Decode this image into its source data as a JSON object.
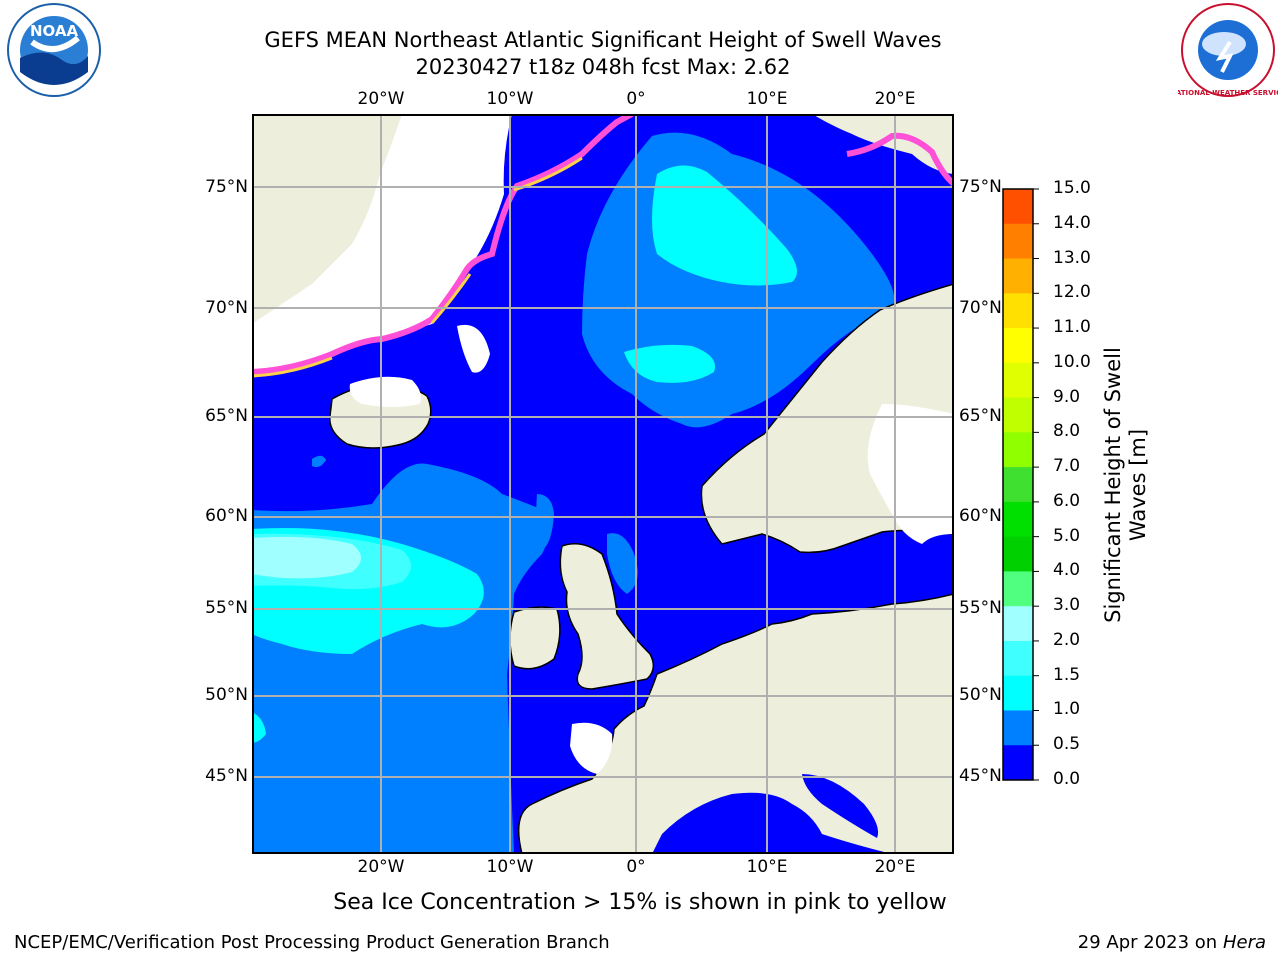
{
  "title": {
    "line1": "GEFS MEAN Northeast Atlantic Significant Height of Swell Waves",
    "line2": "20230427 t18z 048h fcst   Max: 2.62"
  },
  "logos": {
    "left": {
      "icon": "noaa-logo",
      "text": "NOAA"
    },
    "right": {
      "icon": "nws-logo",
      "text": "NATIONAL WEATHER SERVICE"
    }
  },
  "map": {
    "lon_labels_top": [
      "20°W",
      "10°W",
      "0°",
      "10°E",
      "20°E"
    ],
    "lon_labels_bottom": [
      "20°W",
      "10°W",
      "0°",
      "10°E",
      "20°E"
    ],
    "lat_labels_left": [
      "75°N",
      "70°N",
      "65°N",
      "60°N",
      "55°N",
      "50°N",
      "45°N"
    ],
    "lat_labels_right": [
      "75°N",
      "70°N",
      "65°N",
      "60°N",
      "55°N",
      "50°N",
      "45°N"
    ],
    "colors": {
      "land": "#eeeedd",
      "ocean_0_05": "#0000ff",
      "ocean_05_10": "#0080ff",
      "ocean_10_15": "#00ffff",
      "ocean_15_20": "#40ffff",
      "ocean_20_30": "#a0ffff",
      "sea_ice": "#ff50d8",
      "grid": "#b0b0b0"
    }
  },
  "colorbar": {
    "ticks": [
      "15.0",
      "14.0",
      "13.0",
      "12.0",
      "11.0",
      "10.0",
      "9.0",
      "8.0",
      "7.0",
      "6.0",
      "5.0",
      "4.0",
      "3.0",
      "2.0",
      "1.5",
      "1.0",
      "0.5",
      "0.0"
    ],
    "colors_top_to_bottom": [
      "#ff0000",
      "#ff2000",
      "#ff5000",
      "#ff8000",
      "#ffb000",
      "#ffe000",
      "#ffff00",
      "#e0ff00",
      "#c0ff00",
      "#90ff00",
      "#40e030",
      "#00e000",
      "#00d000",
      "#50ff80",
      "#a0ffff",
      "#40ffff",
      "#00ffff",
      "#0080ff",
      "#0000ff"
    ],
    "label": "Significant Height of Swell Waves [m]",
    "label_line1": "Significant Height of Swell",
    "label_line2": "Waves [m]"
  },
  "footer": {
    "note": "Sea Ice Concentration > 15% is shown in pink to yellow",
    "left": "NCEP/EMC/Verification Post Processing Product Generation Branch",
    "right_prefix": "29 Apr 2023 on ",
    "right_host": "Hera"
  }
}
